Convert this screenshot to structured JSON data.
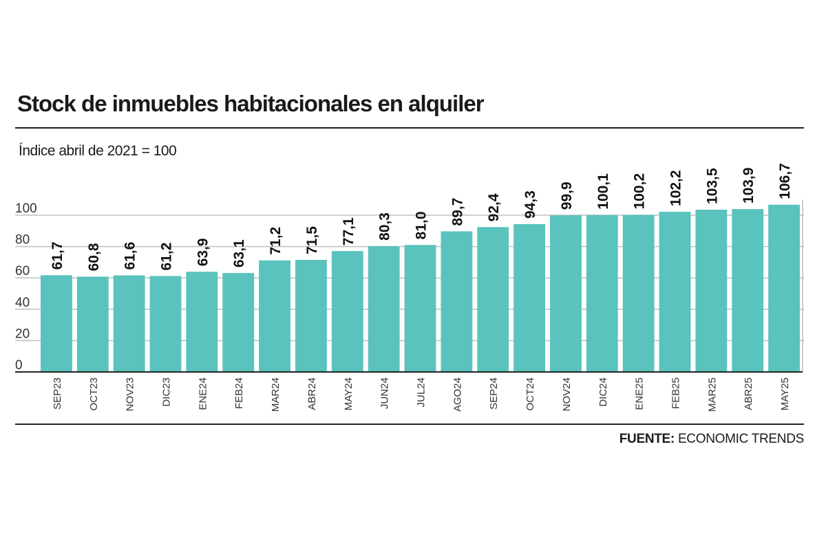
{
  "title": "Stock de inmuebles habitacionales en alquiler",
  "subtitle": "Índice abril de 2021 = 100",
  "source": {
    "label": "FUENTE:",
    "text": "ECONOMIC TRENDS"
  },
  "colors": {
    "bar": "#5ac3bd",
    "grid": "#bfbfbf",
    "axis": "#222222"
  },
  "chart_data": {
    "type": "bar",
    "title": "Stock de inmuebles habitacionales en alquiler",
    "subtitle": "Índice abril de 2021 = 100",
    "categories": [
      "SEP23",
      "OCT23",
      "NOV23",
      "DIC23",
      "ENE24",
      "FEB24",
      "MAR24",
      "ABR24",
      "MAY24",
      "JUN24",
      "JUL24",
      "AGO24",
      "SEP24",
      "OCT24",
      "NOV24",
      "DIC24",
      "ENE25",
      "FEB25",
      "MAR25",
      "ABR25",
      "MAY25"
    ],
    "values": [
      61.7,
      60.8,
      61.6,
      61.2,
      63.9,
      63.1,
      71.2,
      71.5,
      77.1,
      80.3,
      81.0,
      89.7,
      92.4,
      94.3,
      99.9,
      100.1,
      100.2,
      102.2,
      103.5,
      103.9,
      106.7
    ],
    "value_labels": [
      "61,7",
      "60,8",
      "61,6",
      "61,2",
      "63,9",
      "63,1",
      "71,2",
      "71,5",
      "77,1",
      "80,3",
      "81,0",
      "89,7",
      "92,4",
      "94,3",
      "99,9",
      "100,1",
      "100,2",
      "102,2",
      "103,5",
      "103,9",
      "106,7"
    ],
    "yticks": [
      "0",
      "20",
      "40",
      "60",
      "80",
      "100"
    ],
    "ylim": [
      0,
      110
    ],
    "grid": true,
    "legend": "none"
  }
}
